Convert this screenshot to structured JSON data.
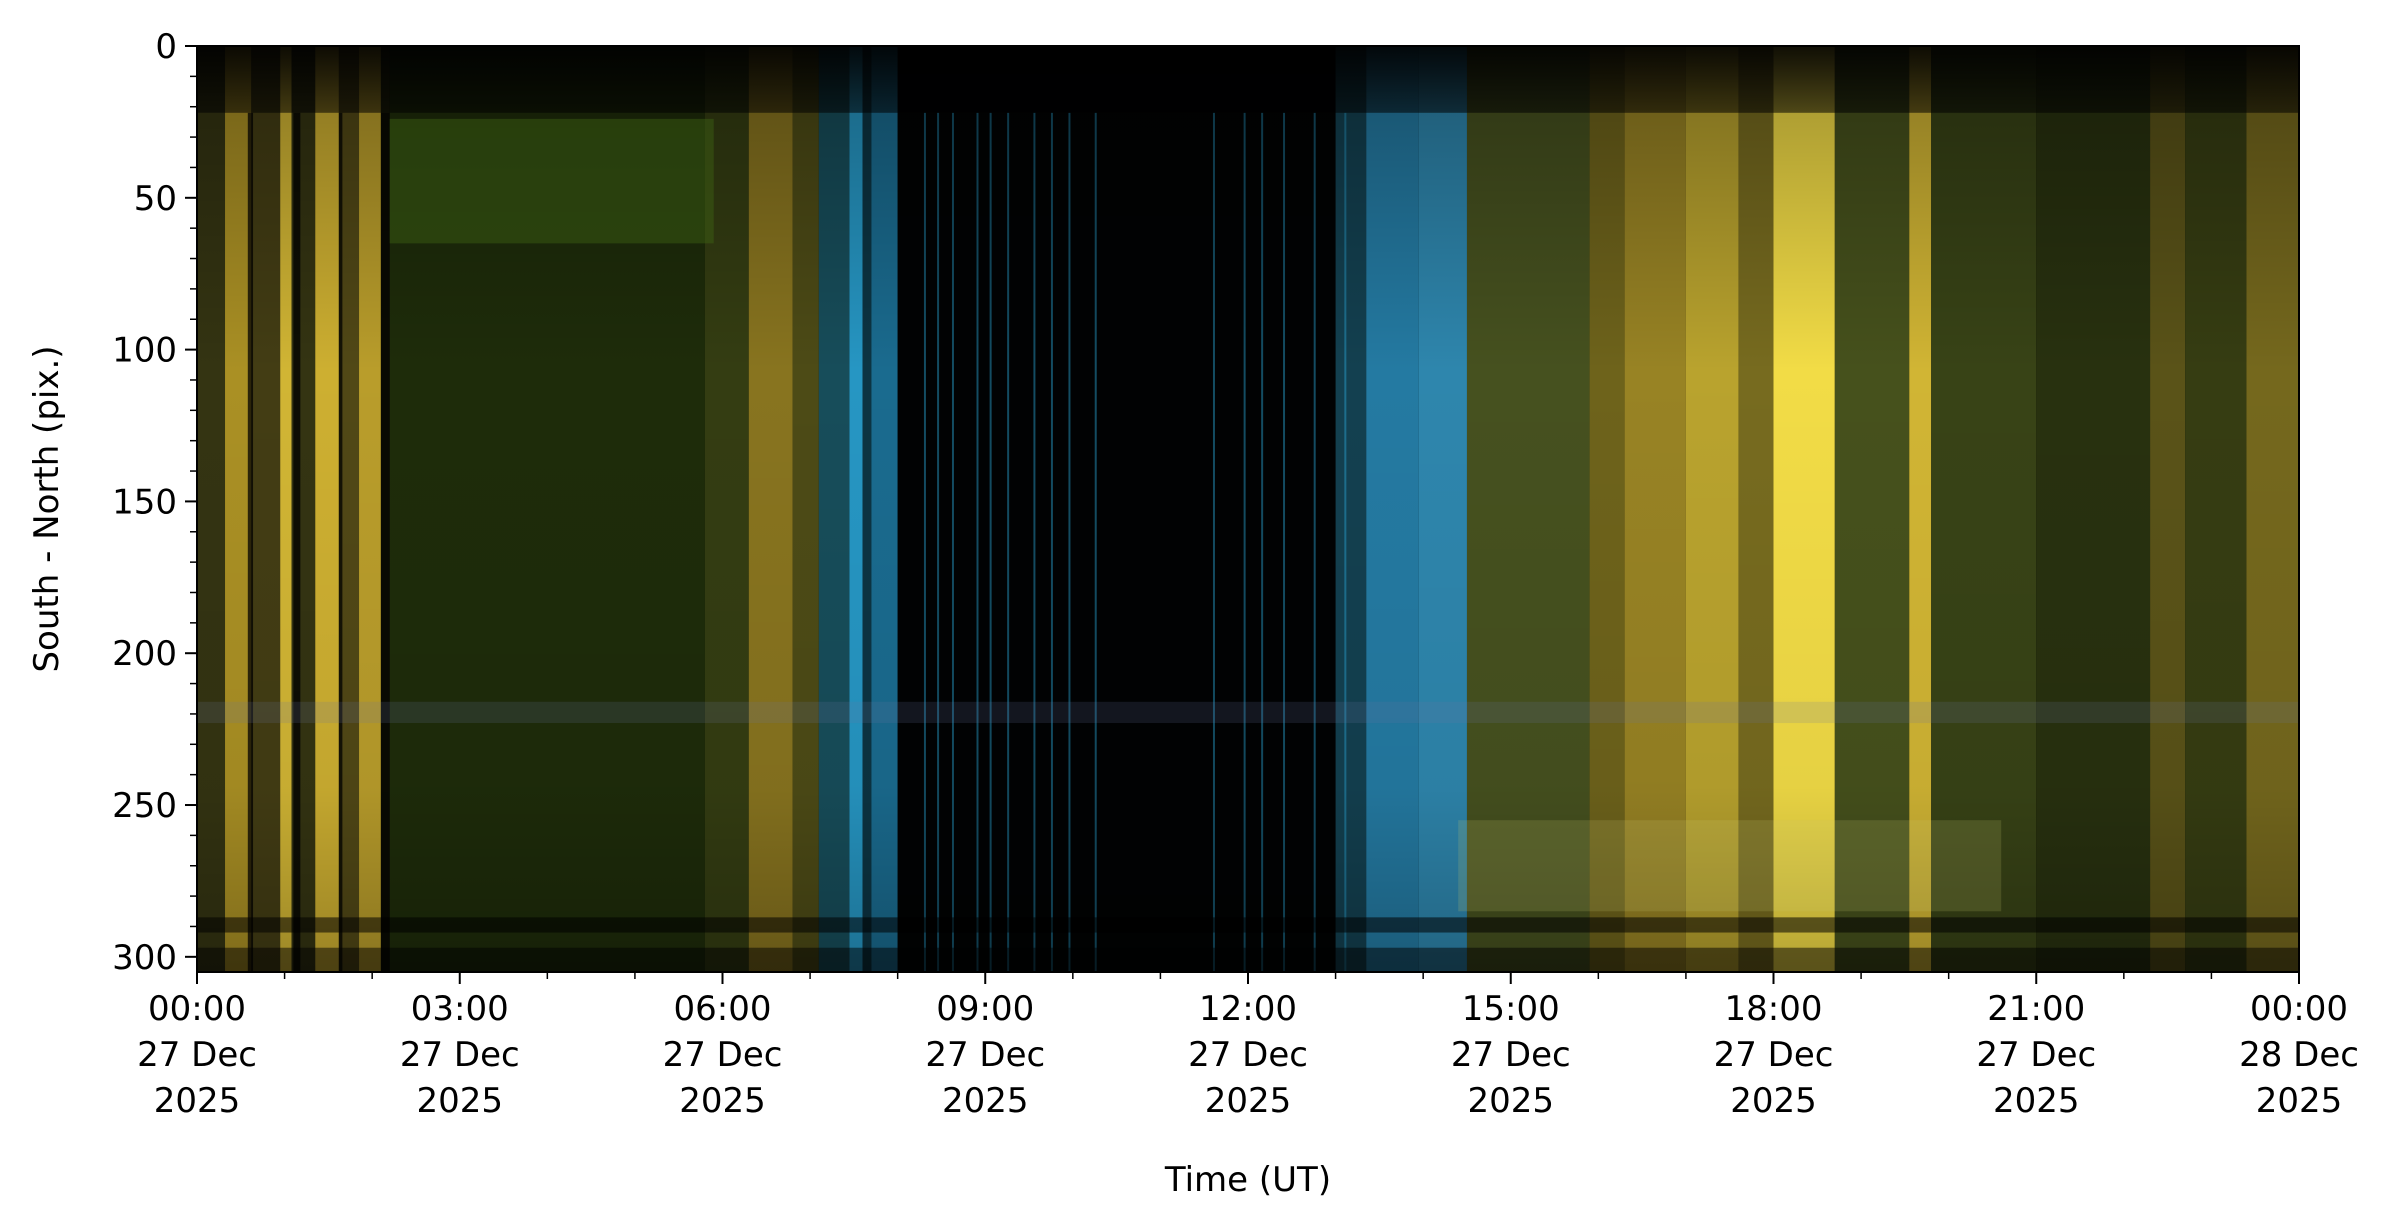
{
  "chart_data": {
    "type": "heatmap",
    "title": "",
    "xlabel": "Time (UT)",
    "ylabel": "South - North (pix.)",
    "xlim": [
      "2025-12-27 00:00",
      "2025-12-28 00:00"
    ],
    "ylim": [
      305,
      0
    ],
    "y_inverted": true,
    "grid": false,
    "legend": "none",
    "y_ticks": [
      {
        "value": 0,
        "label": "0"
      },
      {
        "value": 50,
        "label": "50"
      },
      {
        "value": 100,
        "label": "100"
      },
      {
        "value": 150,
        "label": "150"
      },
      {
        "value": 200,
        "label": "200"
      },
      {
        "value": 250,
        "label": "250"
      },
      {
        "value": 300,
        "label": "300"
      }
    ],
    "x_ticks": [
      {
        "value": 0,
        "lines": [
          "00:00",
          "27 Dec",
          "2025"
        ]
      },
      {
        "value": 3,
        "lines": [
          "03:00",
          "27 Dec",
          "2025"
        ]
      },
      {
        "value": 6,
        "lines": [
          "06:00",
          "27 Dec",
          "2025"
        ]
      },
      {
        "value": 9,
        "lines": [
          "09:00",
          "27 Dec",
          "2025"
        ]
      },
      {
        "value": 12,
        "lines": [
          "12:00",
          "27 Dec",
          "2025"
        ]
      },
      {
        "value": 15,
        "lines": [
          "15:00",
          "27 Dec",
          "2025"
        ]
      },
      {
        "value": 18,
        "lines": [
          "18:00",
          "27 Dec",
          "2025"
        ]
      },
      {
        "value": 21,
        "lines": [
          "21:00",
          "27 Dec",
          "2025"
        ]
      },
      {
        "value": 24,
        "lines": [
          "00:00",
          "28 Dec",
          "2025"
        ]
      }
    ],
    "colors": {
      "background_dark": "#030401",
      "aurora_green": "#2f4a10",
      "green_dark": "#1c2a0b",
      "twilight_yellow": "#e8c93a",
      "bright_yellow": "#ffe84a",
      "twilight_blue": "#2aa6d8",
      "olive": "#4e5a1f"
    },
    "bands": [
      {
        "t0": 0.0,
        "t1": 0.32,
        "color": "#3a3a14",
        "opacity": 0.9
      },
      {
        "t0": 0.32,
        "t1": 0.62,
        "color": "#c8a92a",
        "opacity": 0.85
      },
      {
        "t0": 0.62,
        "t1": 0.95,
        "color": "#4a4416",
        "opacity": 0.9
      },
      {
        "t0": 0.95,
        "t1": 1.08,
        "color": "#e8c93a",
        "opacity": 0.9
      },
      {
        "t0": 1.08,
        "t1": 1.35,
        "color": "#3a3a14",
        "opacity": 0.9
      },
      {
        "t0": 1.35,
        "t1": 1.62,
        "color": "#e3c236",
        "opacity": 0.9
      },
      {
        "t0": 1.62,
        "t1": 1.85,
        "color": "#5a5018",
        "opacity": 0.9
      },
      {
        "t0": 1.85,
        "t1": 2.1,
        "color": "#d9b832",
        "opacity": 0.85
      },
      {
        "t0": 2.1,
        "t1": 2.2,
        "color": "#2a2c0e",
        "opacity": 0.9
      },
      {
        "t0": 2.2,
        "t1": 5.8,
        "color": "#1e2c0a",
        "opacity": 1.0
      },
      {
        "t0": 5.8,
        "t1": 6.3,
        "color": "#3a4414",
        "opacity": 0.9
      },
      {
        "t0": 6.3,
        "t1": 6.8,
        "color": "#b59a2a",
        "opacity": 0.75
      },
      {
        "t0": 6.8,
        "t1": 7.1,
        "color": "#6e6a20",
        "opacity": 0.7
      },
      {
        "t0": 7.1,
        "t1": 7.45,
        "color": "#1b5a6a",
        "opacity": 0.85
      },
      {
        "t0": 7.45,
        "t1": 7.6,
        "color": "#2aa6d8",
        "opacity": 0.9
      },
      {
        "t0": 7.6,
        "t1": 7.7,
        "color": "#0d3a4a",
        "opacity": 0.9
      },
      {
        "t0": 7.7,
        "t1": 8.0,
        "color": "#1f7ea8",
        "opacity": 0.85
      },
      {
        "t0": 8.0,
        "t1": 13.0,
        "color": "#010203",
        "opacity": 1.0
      },
      {
        "t0": 13.0,
        "t1": 13.35,
        "color": "#164b5e",
        "opacity": 0.85
      },
      {
        "t0": 13.35,
        "t1": 13.95,
        "color": "#2a8fbe",
        "opacity": 0.85
      },
      {
        "t0": 13.95,
        "t1": 14.5,
        "color": "#3aa8d8",
        "opacity": 0.8
      },
      {
        "t0": 14.5,
        "t1": 15.9,
        "color": "#4e5a22",
        "opacity": 0.9
      },
      {
        "t0": 15.9,
        "t1": 16.3,
        "color": "#8a7c22",
        "opacity": 0.8
      },
      {
        "t0": 16.3,
        "t1": 17.0,
        "color": "#b39a2a",
        "opacity": 0.85
      },
      {
        "t0": 17.0,
        "t1": 17.6,
        "color": "#d9bf36",
        "opacity": 0.85
      },
      {
        "t0": 17.6,
        "t1": 18.0,
        "color": "#8c7e24",
        "opacity": 0.85
      },
      {
        "t0": 18.0,
        "t1": 18.7,
        "color": "#ffe84a",
        "opacity": 0.95
      },
      {
        "t0": 18.7,
        "t1": 19.55,
        "color": "#4e5a1f",
        "opacity": 0.9
      },
      {
        "t0": 19.55,
        "t1": 19.8,
        "color": "#e8c93a",
        "opacity": 0.9
      },
      {
        "t0": 19.8,
        "t1": 21.0,
        "color": "#3e4a18",
        "opacity": 0.9
      },
      {
        "t0": 21.0,
        "t1": 22.3,
        "color": "#2a3410",
        "opacity": 0.95
      },
      {
        "t0": 22.3,
        "t1": 22.7,
        "color": "#6a621c",
        "opacity": 0.85
      },
      {
        "t0": 22.7,
        "t1": 23.4,
        "color": "#3c4414",
        "opacity": 0.9
      },
      {
        "t0": 23.4,
        "t1": 24.0,
        "color": "#8a7a22",
        "opacity": 0.85
      }
    ],
    "dark_gaps": [
      {
        "t0": 0.58,
        "t1": 0.64
      },
      {
        "t0": 1.1,
        "t1": 1.18
      },
      {
        "t0": 1.62,
        "t1": 1.66
      },
      {
        "t0": 2.1,
        "t1": 2.2
      }
    ],
    "thin_lines": [
      8.3,
      8.45,
      8.62,
      8.9,
      9.05,
      9.25,
      9.55,
      9.75,
      9.95,
      10.25,
      11.6,
      11.95,
      12.15,
      12.4,
      12.75,
      13.1
    ]
  }
}
